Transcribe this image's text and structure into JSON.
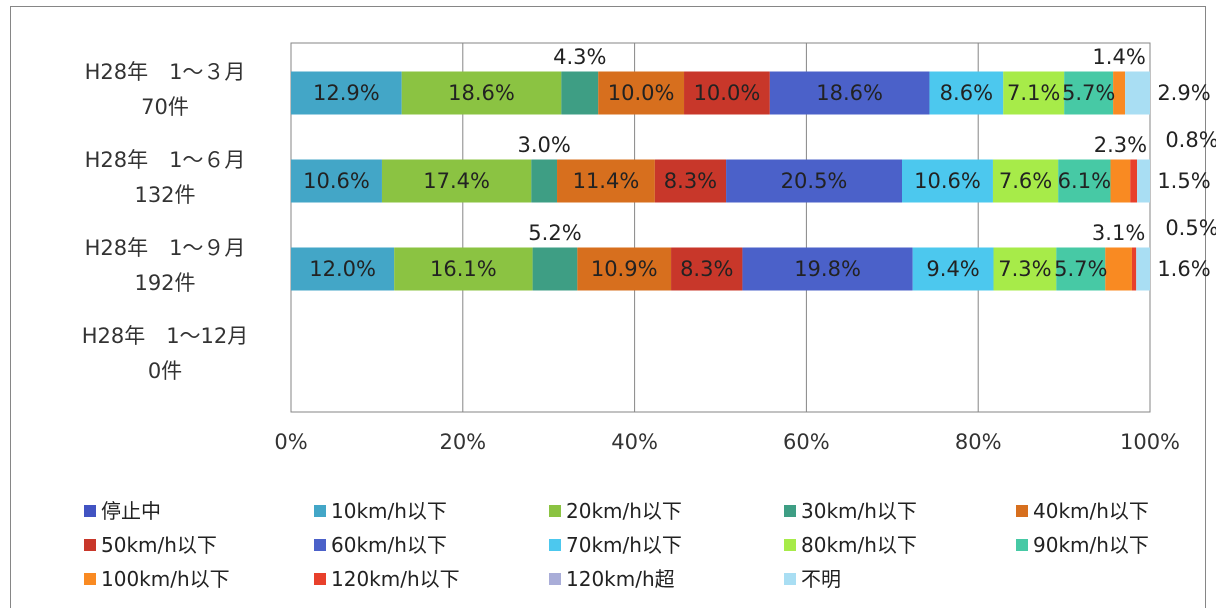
{
  "chart_data": {
    "type": "bar",
    "orientation": "horizontal",
    "stacked": "percent",
    "categories": [
      {
        "line1": "H28年　1～３月",
        "line2": "70件"
      },
      {
        "line1": "H28年　1～６月",
        "line2": "132件"
      },
      {
        "line1": "H28年　1～９月",
        "line2": "192件"
      },
      {
        "line1": "H28年　1～12月",
        "line2": "0件"
      }
    ],
    "x_ticks": [
      "0%",
      "20%",
      "40%",
      "60%",
      "80%",
      "100%"
    ],
    "xlim": [
      0,
      100
    ],
    "grid": true,
    "legend_position": "bottom",
    "series": [
      {
        "name": "停止中",
        "color": "#4153C2",
        "values": [
          0,
          0,
          0,
          0
        ]
      },
      {
        "name": "10km/h以下",
        "color": "#43A6C7",
        "values": [
          12.9,
          10.6,
          12.0,
          0
        ]
      },
      {
        "name": "20km/h以下",
        "color": "#8BC342",
        "values": [
          18.6,
          17.4,
          16.1,
          0
        ]
      },
      {
        "name": "30km/h以下",
        "color": "#3E9E84",
        "values": [
          4.3,
          3.0,
          5.2,
          0
        ]
      },
      {
        "name": "40km/h以下",
        "color": "#D76F1E",
        "values": [
          10.0,
          11.4,
          10.9,
          0
        ]
      },
      {
        "name": "50km/h以下",
        "color": "#C8372A",
        "values": [
          10.0,
          8.3,
          8.3,
          0
        ]
      },
      {
        "name": "60km/h以下",
        "color": "#4B61C9",
        "values": [
          18.6,
          20.5,
          19.8,
          0
        ]
      },
      {
        "name": "70km/h以下",
        "color": "#4CC8EE",
        "values": [
          8.6,
          10.6,
          9.4,
          0
        ]
      },
      {
        "name": "80km/h以下",
        "color": "#A7EB49",
        "values": [
          7.1,
          7.6,
          7.3,
          0
        ]
      },
      {
        "name": "90km/h以下",
        "color": "#47C9A5",
        "values": [
          5.7,
          6.1,
          5.7,
          0
        ]
      },
      {
        "name": "100km/h以下",
        "color": "#F98A22",
        "values": [
          1.4,
          2.3,
          3.1,
          0
        ]
      },
      {
        "name": "120km/h以下",
        "color": "#E8402B",
        "values": [
          0.0,
          0.8,
          0.5,
          0
        ]
      },
      {
        "name": "120km/h超",
        "color": "#A9ADD8",
        "values": [
          0,
          0,
          0,
          0
        ]
      },
      {
        "name": "不明",
        "color": "#A9DEF3",
        "values": [
          2.9,
          1.5,
          1.6,
          0
        ]
      }
    ],
    "data_labels": [
      [
        {
          "series": 1,
          "text": "12.9%"
        },
        {
          "series": 2,
          "text": "18.6%"
        },
        {
          "series": 3,
          "text": "4.3%"
        },
        {
          "series": 4,
          "text": "10.0%"
        },
        {
          "series": 5,
          "text": "10.0%"
        },
        {
          "series": 6,
          "text": "18.6%"
        },
        {
          "series": 7,
          "text": "8.6%"
        },
        {
          "series": 8,
          "text": "7.1%"
        },
        {
          "series": 9,
          "text": "5.7%"
        },
        {
          "series": 10,
          "text": "1.4%"
        },
        {
          "series": 13,
          "text": "2.9%"
        }
      ],
      [
        {
          "series": 1,
          "text": "10.6%"
        },
        {
          "series": 2,
          "text": "17.4%"
        },
        {
          "series": 3,
          "text": "3.0%"
        },
        {
          "series": 4,
          "text": "11.4%"
        },
        {
          "series": 5,
          "text": "8.3%"
        },
        {
          "series": 6,
          "text": "20.5%"
        },
        {
          "series": 7,
          "text": "10.6%"
        },
        {
          "series": 8,
          "text": "7.6%"
        },
        {
          "series": 9,
          "text": "6.1%"
        },
        {
          "series": 10,
          "text": "2.3%"
        },
        {
          "series": 11,
          "text": "0.8%"
        },
        {
          "series": 13,
          "text": "1.5%"
        }
      ],
      [
        {
          "series": 1,
          "text": "12.0%"
        },
        {
          "series": 2,
          "text": "16.1%"
        },
        {
          "series": 3,
          "text": "5.2%"
        },
        {
          "series": 4,
          "text": "10.9%"
        },
        {
          "series": 5,
          "text": "8.3%"
        },
        {
          "series": 6,
          "text": "19.8%"
        },
        {
          "series": 7,
          "text": "9.4%"
        },
        {
          "series": 8,
          "text": "7.3%"
        },
        {
          "series": 9,
          "text": "5.7%"
        },
        {
          "series": 10,
          "text": "3.1%"
        },
        {
          "series": 11,
          "text": "0.5%"
        },
        {
          "series": 13,
          "text": "1.6%"
        }
      ]
    ]
  }
}
